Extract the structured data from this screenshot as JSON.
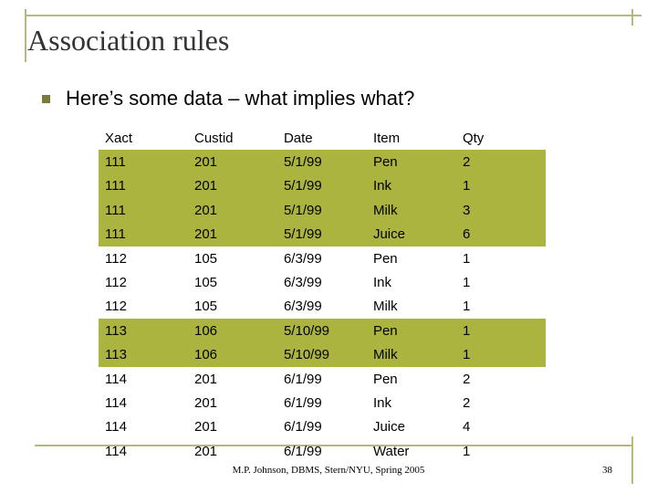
{
  "header": {
    "title": "Association rules",
    "bullet": "Here’s some data – what implies what?"
  },
  "table": {
    "columns": [
      "Xact",
      "Custid",
      "Date",
      "Item",
      "Qty"
    ],
    "rows": [
      [
        111,
        201,
        "5/1/99",
        "Pen",
        2
      ],
      [
        111,
        201,
        "5/1/99",
        "Ink",
        1
      ],
      [
        111,
        201,
        "5/1/99",
        "Milk",
        3
      ],
      [
        111,
        201,
        "5/1/99",
        "Juice",
        6
      ],
      [
        112,
        105,
        "6/3/99",
        "Pen",
        1
      ],
      [
        112,
        105,
        "6/3/99",
        "Ink",
        1
      ],
      [
        112,
        105,
        "6/3/99",
        "Milk",
        1
      ],
      [
        113,
        106,
        "5/10/99",
        "Pen",
        1
      ],
      [
        113,
        106,
        "5/10/99",
        "Milk",
        1
      ],
      [
        114,
        201,
        "6/1/99",
        "Pen",
        2
      ],
      [
        114,
        201,
        "6/1/99",
        "Ink",
        2
      ],
      [
        114,
        201,
        "6/1/99",
        "Juice",
        4
      ],
      [
        114,
        201,
        "6/1/99",
        "Water",
        1
      ]
    ]
  },
  "footer": {
    "text": "M.P. Johnson, DBMS, Stern/NYU, Spring 2005",
    "page": "38"
  }
}
